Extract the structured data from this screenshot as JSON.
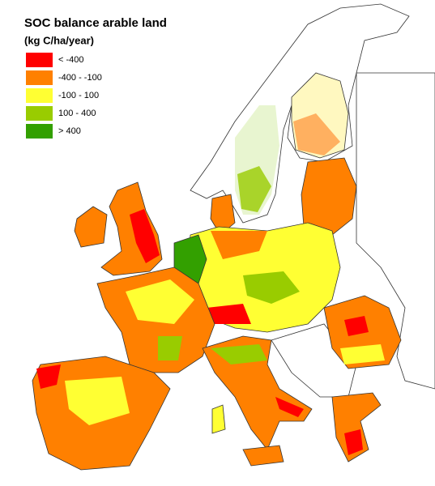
{
  "title": "SOC balance arable land",
  "subtitle": "(kg C/ha/year)",
  "legend": [
    {
      "label": "< -400",
      "color": "#ff0000"
    },
    {
      "label": "-400 - -100",
      "color": "#ff8000"
    },
    {
      "label": "-100 - 100",
      "color": "#ffff33"
    },
    {
      "label": "100 - 400",
      "color": "#99cc00"
    },
    {
      "label": "> 400",
      "color": "#33a000"
    }
  ]
}
